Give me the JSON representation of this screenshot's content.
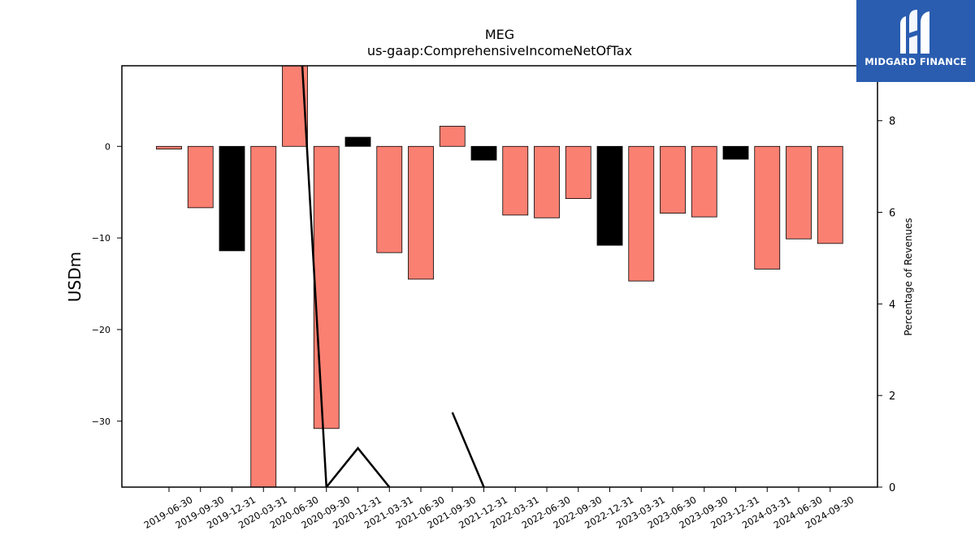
{
  "chart_data": {
    "type": "bar",
    "title": "MEG",
    "subtitle": "us-gaap:ComprehensiveIncomeNetOfTax",
    "ylabel": "USDm",
    "y2label": "Percentage of Revenues",
    "ylim": [
      -37.2,
      8.8
    ],
    "y2lim": [
      0,
      9.2
    ],
    "yticks": [
      0,
      -10,
      -20,
      -30
    ],
    "y2ticks": [
      0,
      2,
      4,
      6,
      8
    ],
    "categories": [
      "2019-06-30",
      "2019-09-30",
      "2019-12-31",
      "2020-03-31",
      "2020-06-30",
      "2020-09-30",
      "2020-12-31",
      "2021-03-31",
      "2021-06-30",
      "2021-09-30",
      "2021-12-31",
      "2022-03-31",
      "2022-06-30",
      "2022-09-30",
      "2022-12-31",
      "2023-03-31",
      "2023-06-30",
      "2023-09-30",
      "2023-12-31",
      "2024-03-31",
      "2024-06-30",
      "2024-09-30"
    ],
    "values": [
      -0.3,
      -6.7,
      -11.4,
      -38,
      9,
      -30.8,
      1.0,
      -11.6,
      -14.5,
      2.2,
      -1.5,
      -7.5,
      -7.8,
      -5.7,
      -10.8,
      -14.7,
      -7.3,
      -7.7,
      -1.4,
      -13.4,
      -10.1,
      -10.6
    ],
    "bar_colors": [
      "#fa8072",
      "#fa8072",
      "#000000",
      "#fa8072",
      "#fa8072",
      "#fa8072",
      "#000000",
      "#fa8072",
      "#fa8072",
      "#fa8072",
      "#000000",
      "#fa8072",
      "#fa8072",
      "#fa8072",
      "#000000",
      "#fa8072",
      "#fa8072",
      "#fa8072",
      "#000000",
      "#fa8072",
      "#fa8072",
      "#fa8072"
    ],
    "line_series": {
      "axis": "right",
      "color": "#000000",
      "values": [
        null,
        null,
        null,
        null,
        12,
        0,
        0.85,
        0,
        null,
        1.63,
        0,
        null,
        null,
        null,
        null,
        null,
        null,
        null,
        null,
        null,
        null,
        null
      ]
    },
    "grid": false
  },
  "logo": {
    "text": "MIDGARD FINANCE",
    "background": "#2a5db0"
  }
}
